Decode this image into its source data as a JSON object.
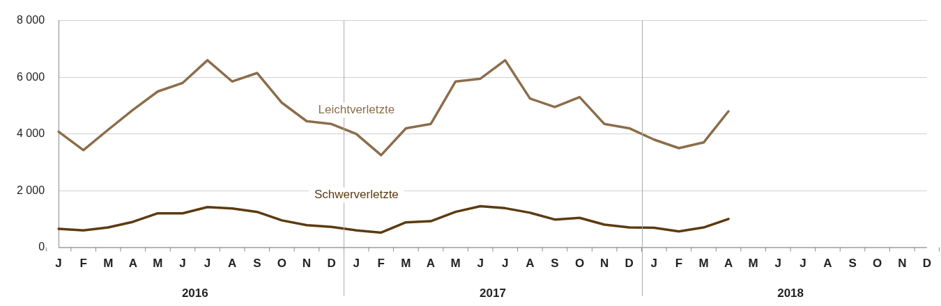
{
  "chart_data": {
    "type": "line",
    "categories": [
      "J",
      "F",
      "M",
      "A",
      "M",
      "J",
      "J",
      "A",
      "S",
      "O",
      "N",
      "D",
      "J",
      "F",
      "M",
      "A",
      "M",
      "J",
      "J",
      "A",
      "S",
      "O",
      "N",
      "D",
      "J",
      "F",
      "M",
      "A",
      "M",
      "J",
      "J",
      "A",
      "S",
      "O",
      "N",
      "D"
    ],
    "series": [
      {
        "name": "Leichtverletzte",
        "color": "#8c6d4a",
        "values": [
          4080,
          3430,
          4150,
          4850,
          5500,
          5800,
          6600,
          5850,
          6150,
          5100,
          4450,
          4350,
          4000,
          3250,
          4200,
          4350,
          5850,
          5950,
          6600,
          5250,
          4950,
          5300,
          4350,
          4200,
          3800,
          3500,
          3700,
          4800,
          null,
          null,
          null,
          null,
          null,
          null,
          null,
          null
        ]
      },
      {
        "name": "Schwerverletzte",
        "color": "#5c3b0f",
        "values": [
          650,
          600,
          700,
          900,
          1200,
          1200,
          1420,
          1370,
          1250,
          950,
          780,
          720,
          600,
          520,
          880,
          920,
          1250,
          1450,
          1380,
          1220,
          980,
          1040,
          800,
          700,
          690,
          560,
          700,
          1000,
          null,
          null,
          null,
          null,
          null,
          null,
          null,
          null
        ]
      }
    ],
    "ylim": [
      0,
      8000
    ],
    "yticks": [
      {
        "value": 0,
        "label": "0"
      },
      {
        "value": 2000,
        "label": "2 000"
      },
      {
        "value": 4000,
        "label": "4 000"
      },
      {
        "value": 6000,
        "label": "6 000"
      },
      {
        "value": 8000,
        "label": "8 000"
      }
    ],
    "grid": "y",
    "legend": false,
    "marker": "none",
    "line_style": "solid",
    "annotations": [
      "2016",
      "2017",
      "2018"
    ]
  }
}
